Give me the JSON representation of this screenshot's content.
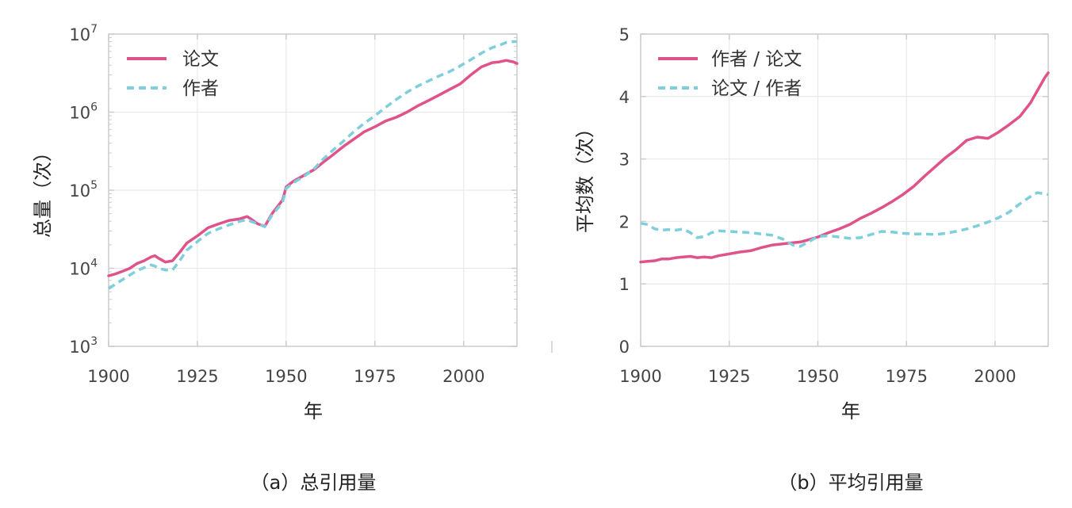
{
  "colors": {
    "series1": "#e0538a",
    "series2": "#7ecfdb",
    "axis": "#cccccc"
  },
  "chart_data": [
    {
      "type": "line",
      "id": "a",
      "xlabel": "年",
      "ylabel": "总量（次）",
      "caption": "（a）总引用量",
      "xlim": [
        1900,
        2015
      ],
      "ylim": [
        1000,
        10000000
      ],
      "yscale": "log",
      "xticks": [
        "1900",
        "1925",
        "1950",
        "1975",
        "2000"
      ],
      "yticks": [
        {
          "base": "10",
          "exp": "3"
        },
        {
          "base": "10",
          "exp": "4"
        },
        {
          "base": "10",
          "exp": "5"
        },
        {
          "base": "10",
          "exp": "6"
        },
        {
          "base": "10",
          "exp": "7"
        }
      ],
      "legend_position": "top-left",
      "x": [
        1900,
        1902,
        1904,
        1906,
        1908,
        1910,
        1912,
        1913,
        1914,
        1916,
        1918,
        1920,
        1922,
        1925,
        1928,
        1931,
        1934,
        1937,
        1939,
        1940,
        1942,
        1944,
        1946,
        1949,
        1950,
        1952,
        1955,
        1958,
        1960,
        1963,
        1966,
        1969,
        1972,
        1975,
        1978,
        1981,
        1984,
        1987,
        1990,
        1993,
        1996,
        1999,
        2002,
        2005,
        2008,
        2010,
        2012,
        2013,
        2014,
        2015
      ],
      "series": [
        {
          "name": "论文",
          "style": "solid",
          "values": [
            8000,
            8500,
            9200,
            10000,
            11500,
            12500,
            14000,
            14500,
            13500,
            12000,
            12500,
            16000,
            21000,
            26000,
            33000,
            37000,
            41000,
            43000,
            46000,
            43000,
            37000,
            34500,
            50000,
            75000,
            110000,
            130000,
            155000,
            185000,
            220000,
            280000,
            360000,
            450000,
            560000,
            650000,
            770000,
            860000,
            1000000,
            1200000,
            1400000,
            1650000,
            1950000,
            2300000,
            3000000,
            3800000,
            4300000,
            4400000,
            4600000,
            4500000,
            4400000,
            4200000
          ]
        },
        {
          "name": "作者",
          "style": "dashed",
          "values": [
            5500,
            6300,
            7200,
            8200,
            9300,
            10200,
            11000,
            10700,
            10000,
            9500,
            9500,
            12500,
            17000,
            22000,
            28000,
            32000,
            36000,
            40000,
            42000,
            40000,
            37000,
            34000,
            48000,
            70000,
            105000,
            125000,
            150000,
            190000,
            240000,
            320000,
            420000,
            560000,
            720000,
            900000,
            1150000,
            1450000,
            1800000,
            2150000,
            2500000,
            2900000,
            3300000,
            3900000,
            4700000,
            5700000,
            6700000,
            7200000,
            7800000,
            7900000,
            8000000,
            8000000
          ]
        }
      ]
    },
    {
      "type": "line",
      "id": "b",
      "xlabel": "年",
      "ylabel": "平均数（次）",
      "caption": "（b）平均引用量",
      "xlim": [
        1900,
        2015
      ],
      "ylim": [
        0,
        5
      ],
      "yscale": "linear",
      "xticks": [
        "1900",
        "1925",
        "1950",
        "1975",
        "2000"
      ],
      "yticks": [
        "0",
        "1",
        "2",
        "3",
        "4",
        "5"
      ],
      "legend_position": "top-left",
      "x": [
        1900,
        1902,
        1904,
        1906,
        1908,
        1910,
        1912,
        1914,
        1916,
        1918,
        1920,
        1922,
        1925,
        1928,
        1931,
        1934,
        1937,
        1940,
        1943,
        1945,
        1947,
        1950,
        1953,
        1956,
        1959,
        1962,
        1965,
        1968,
        1971,
        1974,
        1977,
        1980,
        1983,
        1986,
        1989,
        1992,
        1995,
        1998,
        2001,
        2004,
        2007,
        2010,
        2011,
        2012,
        2013,
        2014,
        2015
      ],
      "series": [
        {
          "name": "作者 / 论文",
          "style": "solid",
          "values": [
            1.35,
            1.36,
            1.37,
            1.4,
            1.4,
            1.42,
            1.43,
            1.44,
            1.42,
            1.43,
            1.42,
            1.45,
            1.48,
            1.51,
            1.53,
            1.58,
            1.62,
            1.64,
            1.66,
            1.67,
            1.7,
            1.75,
            1.82,
            1.88,
            1.95,
            2.05,
            2.13,
            2.22,
            2.32,
            2.43,
            2.56,
            2.72,
            2.87,
            3.02,
            3.15,
            3.3,
            3.35,
            3.33,
            3.43,
            3.55,
            3.68,
            3.9,
            4.0,
            4.1,
            4.2,
            4.3,
            4.38
          ]
        },
        {
          "name": "论文 / 作者",
          "style": "dashed",
          "values": [
            1.97,
            1.95,
            1.88,
            1.86,
            1.87,
            1.86,
            1.88,
            1.82,
            1.74,
            1.76,
            1.82,
            1.85,
            1.84,
            1.83,
            1.82,
            1.8,
            1.78,
            1.72,
            1.62,
            1.6,
            1.66,
            1.76,
            1.77,
            1.75,
            1.73,
            1.74,
            1.79,
            1.84,
            1.83,
            1.81,
            1.8,
            1.8,
            1.79,
            1.81,
            1.84,
            1.88,
            1.93,
            1.99,
            2.06,
            2.15,
            2.28,
            2.4,
            2.44,
            2.46,
            2.45,
            2.44,
            2.43
          ]
        }
      ]
    }
  ]
}
